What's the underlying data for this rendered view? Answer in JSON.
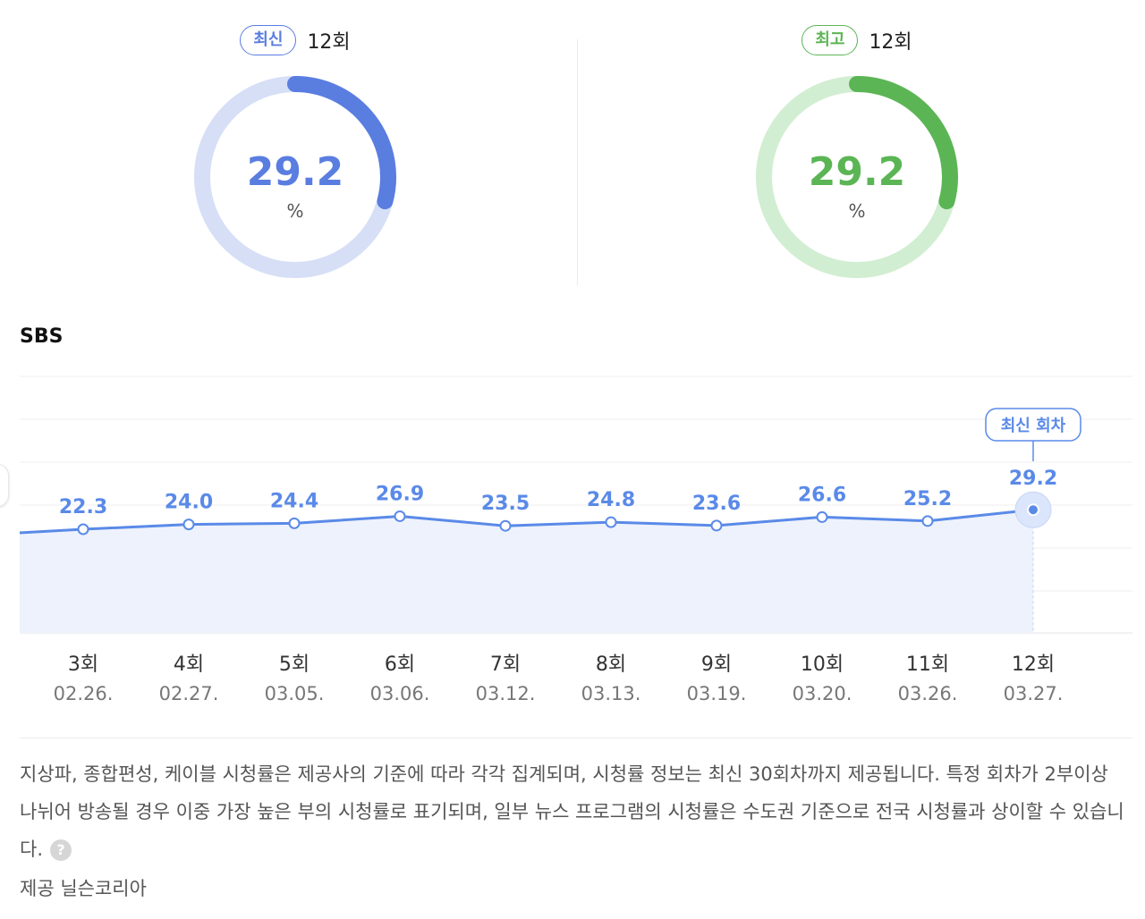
{
  "summary": {
    "latest": {
      "badge": "최신",
      "episode": "12회",
      "value": 29.2,
      "value_label": "29.2",
      "unit": "%",
      "color": "#5a7de0",
      "track_color": "#d6dff6"
    },
    "highest": {
      "badge": "최고",
      "episode": "12회",
      "value": 29.2,
      "value_label": "29.2",
      "unit": "%",
      "color": "#5bb554",
      "track_color": "#d2eed2"
    }
  },
  "channel": "SBS",
  "chart_data": {
    "type": "line",
    "categories": [
      "3회",
      "4회",
      "5회",
      "6회",
      "7회",
      "8회",
      "9회",
      "10회",
      "11회",
      "12회"
    ],
    "dates": [
      "02.26.",
      "02.27.",
      "03.05.",
      "03.06.",
      "03.12.",
      "03.13.",
      "03.19.",
      "03.20.",
      "03.26.",
      "03.27."
    ],
    "values": [
      22.3,
      24.0,
      24.4,
      26.9,
      23.5,
      24.8,
      23.6,
      26.6,
      25.2,
      29.2
    ],
    "value_labels": [
      "22.3",
      "24.0",
      "24.4",
      "26.9",
      "23.5",
      "24.8",
      "23.6",
      "26.6",
      "25.2",
      "29.2"
    ],
    "highlight_label": "최신 회차",
    "highlight_index": 9,
    "line_color": "#5a8ae8",
    "fill_color": "#eef2fc"
  },
  "notice": "지상파, 종합편성, 케이블 시청률은 제공사의 기준에 따라 각각 집계되며, 시청률 정보는 최신 30회차까지 제공됩니다. 특정 회차가 2부이상 나뉘어 방송될 경우 이중 가장 높은 부의 시청률로 표기되며, 일부 뉴스 프로그램의 시청률은 수도권 기준으로 전국 시청률과 상이할 수 있습니다.",
  "help_icon": "?",
  "provider": "제공 닐슨코리아"
}
